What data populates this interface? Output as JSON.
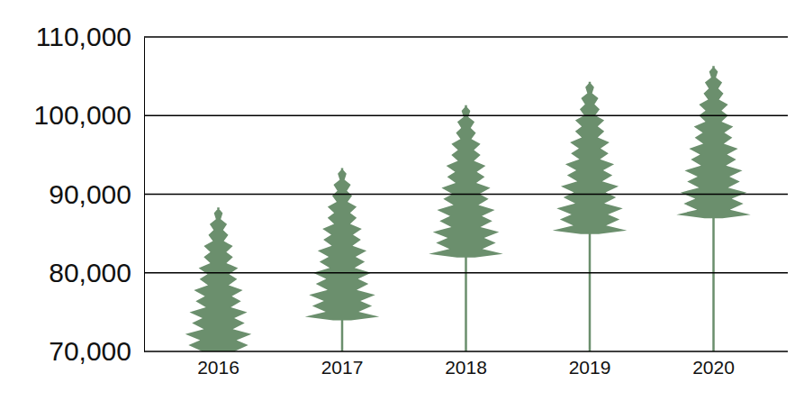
{
  "chart_data": {
    "type": "bar",
    "marker": "tree",
    "categories": [
      "2016",
      "2017",
      "2018",
      "2019",
      "2020"
    ],
    "values": [
      89000,
      94000,
      102000,
      105000,
      107000
    ],
    "color": "#6b8f6d",
    "ylim": [
      70000,
      110000
    ],
    "yticks": [
      {
        "value": 70000,
        "label": "70,000"
      },
      {
        "value": 80000,
        "label": "80,000"
      },
      {
        "value": 90000,
        "label": "90,000"
      },
      {
        "value": 100000,
        "label": "100,000"
      },
      {
        "value": 110000,
        "label": "110,000"
      }
    ],
    "grid": true
  }
}
